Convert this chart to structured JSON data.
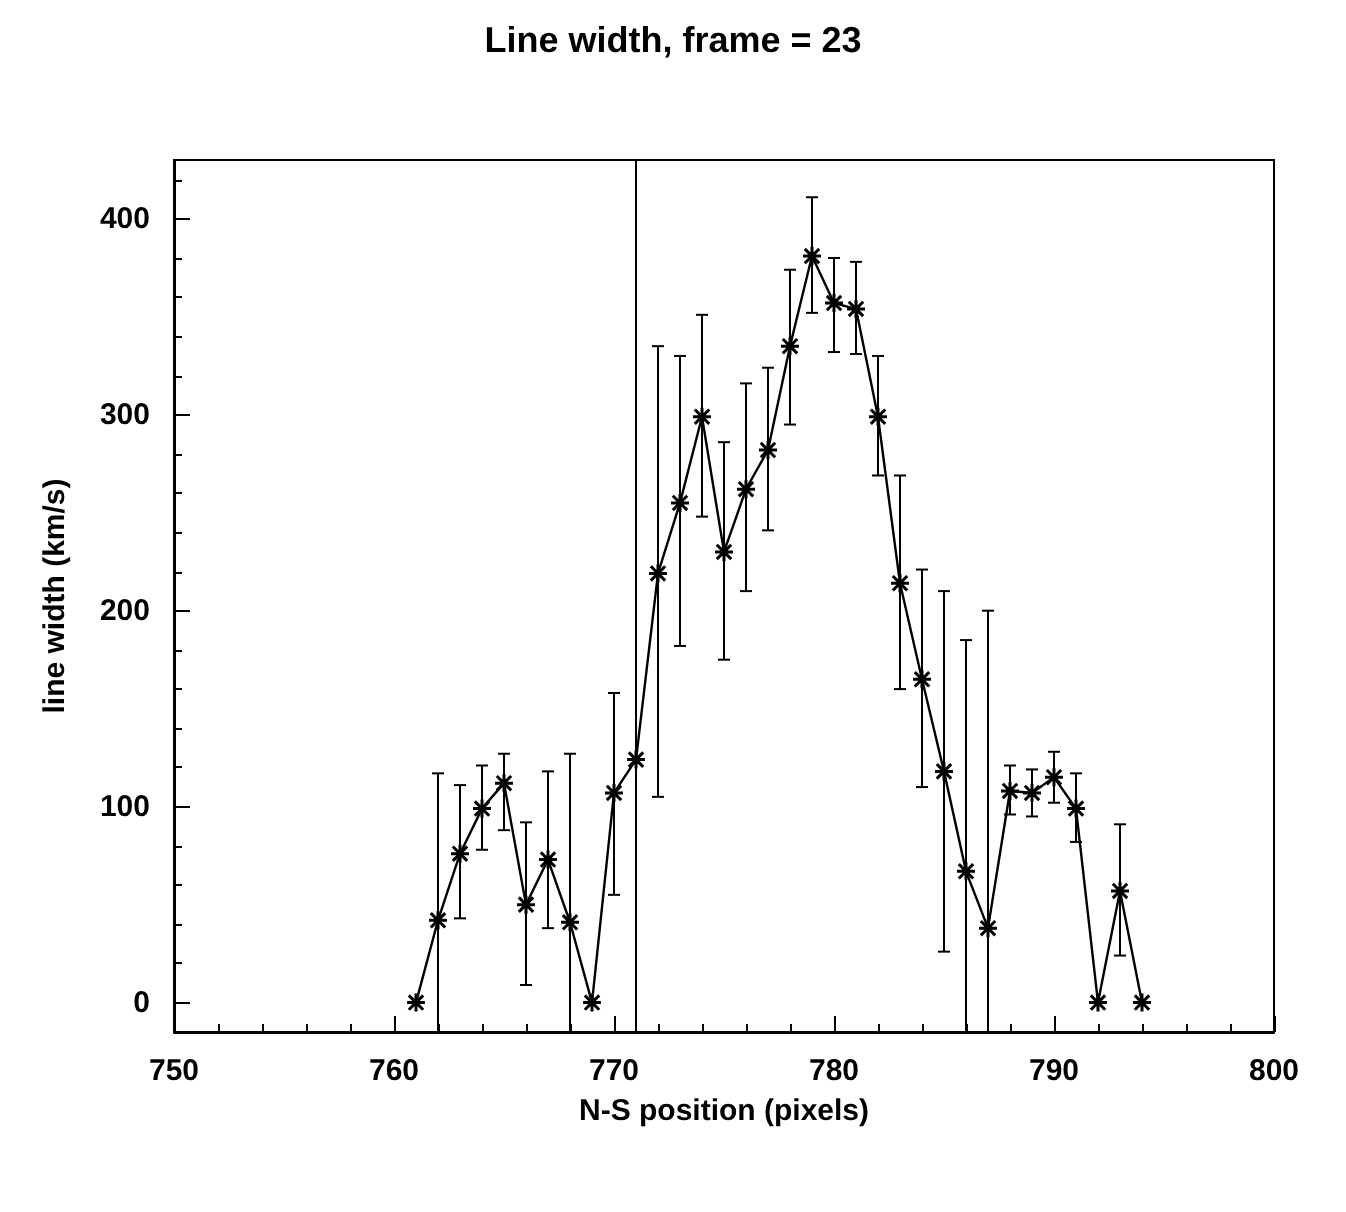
{
  "chart_data": {
    "type": "line",
    "title": "Line width, frame = 23",
    "xlabel": "N-S position (pixels)",
    "ylabel": "line width (km/s)",
    "x": [
      761,
      762,
      763,
      764,
      765,
      766,
      767,
      768,
      769,
      770,
      771,
      772,
      773,
      774,
      775,
      776,
      777,
      778,
      779,
      780,
      781,
      782,
      783,
      784,
      785,
      786,
      787,
      788,
      789,
      790,
      791,
      792,
      793,
      794
    ],
    "series": [
      {
        "color": "#000000",
        "values": [
          0,
          42,
          76,
          99,
          112,
          50,
          73,
          41,
          0,
          107,
          124,
          219,
          255,
          299,
          230,
          262,
          282,
          335,
          381,
          357,
          354,
          299,
          214,
          165,
          118,
          67,
          38,
          108,
          107,
          115,
          99,
          0,
          57,
          0
        ],
        "errors": [
          null,
          [
            -15,
            117
          ],
          [
            43,
            111
          ],
          [
            78,
            121
          ],
          [
            88,
            127
          ],
          [
            9,
            92
          ],
          [
            38,
            118
          ],
          [
            -15,
            127
          ],
          null,
          [
            55,
            158
          ],
          [
            -15,
            430
          ],
          [
            105,
            335
          ],
          [
            182,
            330
          ],
          [
            248,
            351
          ],
          [
            175,
            286
          ],
          [
            210,
            316
          ],
          [
            241,
            324
          ],
          [
            295,
            374
          ],
          [
            352,
            411
          ],
          [
            332,
            380
          ],
          [
            331,
            378
          ],
          [
            269,
            330
          ],
          [
            160,
            269
          ],
          [
            110,
            221
          ],
          [
            26,
            210
          ],
          [
            -15,
            185
          ],
          [
            -15,
            200
          ],
          [
            96,
            121
          ],
          [
            95,
            119
          ],
          [
            102,
            128
          ],
          [
            82,
            117
          ],
          null,
          [
            24,
            91
          ],
          null
        ]
      }
    ],
    "xlim": [
      750,
      800
    ],
    "xticks": [
      750,
      760,
      770,
      780,
      790,
      800
    ],
    "ylim": [
      -15,
      430
    ],
    "yticks": [
      0,
      100,
      200,
      300,
      400
    ],
    "grid": false,
    "marker": "cross",
    "line_style": "solid"
  }
}
